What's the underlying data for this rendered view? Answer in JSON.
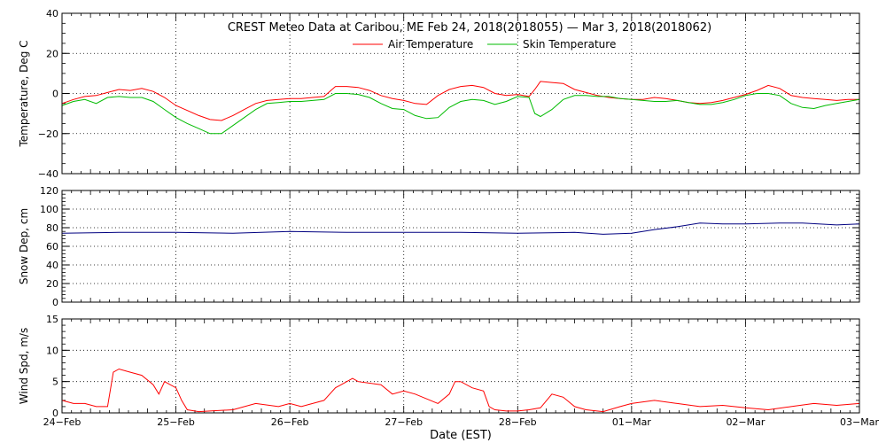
{
  "title": "CREST Meteo Data at Caribou, ME   Feb 24, 2018(2018055) — Mar  3, 2018(2018062)",
  "colors": {
    "air": "#ff0000",
    "skin": "#00bb00",
    "snow": "#000080",
    "wind": "#ff0000",
    "frame": "#000000"
  },
  "chart_data": [
    {
      "type": "line",
      "ylabel": "Temperature, Deg C",
      "ylim": [
        -40,
        40
      ],
      "yticks": [
        "40",
        "20",
        "0",
        "−20",
        "−40"
      ],
      "ytick_values": [
        40,
        20,
        0,
        -20,
        -40
      ],
      "grid": true,
      "legend": "top-center",
      "x_unit": "days since Feb 24 00:00 EST",
      "series": [
        {
          "name": "Air Temperature",
          "x": [
            0,
            0.1,
            0.2,
            0.3,
            0.4,
            0.5,
            0.6,
            0.7,
            0.8,
            0.9,
            1.0,
            1.1,
            1.2,
            1.3,
            1.4,
            1.5,
            1.6,
            1.7,
            1.8,
            1.9,
            2.0,
            2.1,
            2.2,
            2.3,
            2.4,
            2.5,
            2.6,
            2.7,
            2.8,
            2.9,
            3.0,
            3.1,
            3.2,
            3.3,
            3.4,
            3.5,
            3.6,
            3.7,
            3.8,
            3.9,
            4.0,
            4.1,
            4.15,
            4.2,
            4.3,
            4.4,
            4.5,
            4.6,
            4.7,
            4.8,
            4.9,
            5.0,
            5.1,
            5.2,
            5.3,
            5.4,
            5.5,
            5.6,
            5.7,
            5.8,
            5.9,
            6.0,
            6.1,
            6.2,
            6.3,
            6.4,
            6.5,
            6.6,
            6.7,
            6.8,
            6.9,
            7.0
          ],
          "y": [
            -5,
            -3,
            -1.5,
            -1,
            0.5,
            2,
            1.5,
            2.5,
            1,
            -2,
            -6,
            -8.5,
            -11,
            -13,
            -13.5,
            -11,
            -8,
            -5,
            -3.5,
            -3,
            -2.5,
            -2.5,
            -2,
            -1.5,
            3.5,
            3.5,
            3,
            1.5,
            -1,
            -2.5,
            -3.5,
            -5,
            -5.5,
            -1,
            2,
            3.5,
            4,
            3,
            0,
            -1,
            -0.5,
            -1.5,
            2,
            6,
            5.5,
            5,
            2,
            0.5,
            -1,
            -2,
            -2.5,
            -3,
            -3,
            -2,
            -2.5,
            -3.5,
            -4.5,
            -5,
            -4.5,
            -3.5,
            -2,
            -0.5,
            1.5,
            4,
            2.5,
            -1,
            -2,
            -2.5,
            -3,
            -3.5,
            -3,
            -3
          ]
        },
        {
          "name": "Skin Temperature",
          "x": [
            0,
            0.1,
            0.2,
            0.3,
            0.4,
            0.5,
            0.6,
            0.7,
            0.8,
            0.9,
            1.0,
            1.1,
            1.2,
            1.3,
            1.4,
            1.5,
            1.6,
            1.7,
            1.8,
            1.9,
            2.0,
            2.1,
            2.2,
            2.3,
            2.4,
            2.5,
            2.6,
            2.7,
            2.8,
            2.9,
            3.0,
            3.1,
            3.2,
            3.3,
            3.4,
            3.5,
            3.6,
            3.7,
            3.8,
            3.9,
            4.0,
            4.1,
            4.15,
            4.2,
            4.3,
            4.4,
            4.5,
            4.6,
            4.7,
            4.8,
            4.9,
            5.0,
            5.1,
            5.2,
            5.3,
            5.4,
            5.5,
            5.6,
            5.7,
            5.8,
            5.9,
            6.0,
            6.1,
            6.2,
            6.3,
            6.4,
            6.5,
            6.6,
            6.7,
            6.8,
            6.9,
            7.0
          ],
          "y": [
            -6,
            -4,
            -3,
            -5,
            -2,
            -1.5,
            -2,
            -2,
            -4,
            -8,
            -12,
            -15,
            -17.5,
            -20,
            -20,
            -16,
            -12,
            -8,
            -5,
            -4.5,
            -4,
            -4,
            -3.5,
            -3,
            0,
            0,
            -0.5,
            -2,
            -5,
            -7.5,
            -8,
            -11,
            -12.5,
            -12,
            -7,
            -4,
            -3,
            -3.5,
            -5.5,
            -4,
            -1.5,
            -2,
            -10,
            -11.5,
            -8,
            -3,
            -1,
            -1,
            -1.5,
            -1.5,
            -2.5,
            -3,
            -3.5,
            -4,
            -4,
            -3.5,
            -4.5,
            -5.5,
            -5.5,
            -4.5,
            -3,
            -1,
            0,
            0,
            -1,
            -5,
            -7,
            -7.5,
            -6,
            -5,
            -4,
            -3
          ]
        }
      ]
    },
    {
      "type": "line",
      "ylabel": "Snow Dep, cm",
      "ylim": [
        0,
        120
      ],
      "yticks": [
        "120",
        "100",
        "80",
        "60",
        "40",
        "20",
        "0"
      ],
      "ytick_values": [
        120,
        100,
        80,
        60,
        40,
        20,
        0
      ],
      "grid": true,
      "x_unit": "days since Feb 24 00:00 EST",
      "series": [
        {
          "name": "Snow Depth",
          "x": [
            0,
            0.5,
            1.0,
            1.5,
            2.0,
            2.5,
            3.0,
            3.5,
            4.0,
            4.5,
            4.75,
            5.0,
            5.2,
            5.4,
            5.6,
            5.8,
            6.0,
            6.3,
            6.5,
            6.8,
            7.0
          ],
          "y": [
            74,
            75,
            75,
            74,
            76,
            75,
            75,
            75,
            74,
            75,
            73,
            74,
            78,
            81,
            85,
            84,
            84,
            85,
            85,
            83,
            84
          ]
        }
      ]
    },
    {
      "type": "line",
      "ylabel": "Wind Spd, m/s",
      "ylim": [
        0,
        15
      ],
      "yticks": [
        "15",
        "10",
        "5",
        "0"
      ],
      "ytick_values": [
        15,
        10,
        5,
        0
      ],
      "grid": true,
      "xlabel": "Date (EST)",
      "xticks": [
        "24−Feb",
        "25−Feb",
        "26−Feb",
        "27−Feb",
        "28−Feb",
        "01−Mar",
        "02−Mar",
        "03−Mar"
      ],
      "xtick_values": [
        0,
        1,
        2,
        3,
        4,
        5,
        6,
        7
      ],
      "x_unit": "days since Feb 24 00:00 EST",
      "series": [
        {
          "name": "Wind Speed",
          "x": [
            0,
            0.1,
            0.2,
            0.3,
            0.4,
            0.45,
            0.5,
            0.6,
            0.7,
            0.8,
            0.85,
            0.9,
            1.0,
            1.05,
            1.1,
            1.2,
            1.3,
            1.5,
            1.7,
            1.9,
            2.0,
            2.1,
            2.3,
            2.4,
            2.5,
            2.55,
            2.6,
            2.8,
            2.9,
            3.0,
            3.1,
            3.3,
            3.4,
            3.45,
            3.5,
            3.6,
            3.7,
            3.75,
            3.8,
            3.9,
            4.0,
            4.1,
            4.2,
            4.3,
            4.4,
            4.5,
            4.6,
            4.75,
            4.9,
            5.0,
            5.2,
            5.4,
            5.6,
            5.8,
            6.0,
            6.2,
            6.4,
            6.6,
            6.8,
            7.0
          ],
          "y": [
            2,
            1.5,
            1.5,
            1,
            1,
            6.5,
            7,
            6.5,
            6,
            4.5,
            3,
            5,
            4,
            2,
            0.5,
            0.2,
            0.3,
            0.5,
            1.5,
            1,
            1.5,
            1,
            2,
            4,
            5,
            5.5,
            5,
            4.5,
            3,
            3.5,
            3,
            1.5,
            3,
            5,
            5,
            4,
            3.5,
            1,
            0.5,
            0.3,
            0.3,
            0.5,
            0.8,
            3,
            2.5,
            1,
            0.5,
            0.2,
            1,
            1.5,
            2,
            1.5,
            1,
            1.2,
            0.8,
            0.5,
            1,
            1.5,
            1.2,
            1.5
          ]
        }
      ]
    }
  ]
}
